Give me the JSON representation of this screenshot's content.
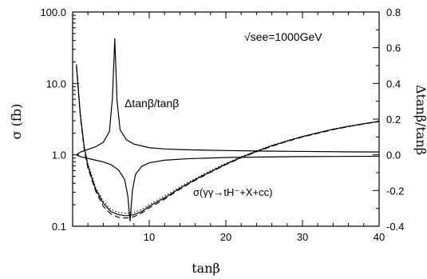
{
  "chart_data": {
    "type": "line",
    "title": "",
    "xlabel": "tanβ",
    "ylabel_left": "σ  (fb)",
    "ylabel_right": "Δtanβ/tanβ",
    "xlim": [
      0,
      40
    ],
    "ylim_left": [
      0.1,
      100.0
    ],
    "ylim_left_scale": "log",
    "ylim_right": [
      -0.4,
      0.8
    ],
    "ylim_right_scale": "linear",
    "x_ticks": [
      10,
      20,
      30,
      40
    ],
    "x_tick_labels": [
      "10",
      "20",
      "30",
      "40"
    ],
    "y_left_ticks": [
      0.1,
      1.0,
      10.0,
      100.0
    ],
    "y_left_tick_labels": [
      "0.1",
      "1.0",
      "10.0",
      "100.0"
    ],
    "y_right_ticks": [
      -0.4,
      -0.2,
      0.0,
      0.2,
      0.4,
      0.6,
      0.8
    ],
    "y_right_tick_labels": [
      "-0.4",
      "-0.2",
      "0.0",
      "0.2",
      "0.4",
      "0.6",
      "0.8"
    ],
    "grid": false,
    "annotations": {
      "energy": "√see=1000GeV",
      "delta_label": "Δtanβ/tanβ",
      "sigma_label": "σ(γγ→tH⁻+X+cc)"
    },
    "series": [
      {
        "axis": "left",
        "style": "solid",
        "x": [
          0.5,
          1,
          1.5,
          2,
          3,
          4,
          5,
          6,
          7,
          8,
          9,
          10,
          12,
          14,
          16,
          18,
          20,
          22,
          24,
          26,
          28,
          30,
          32,
          34,
          36,
          38,
          40
        ],
        "y": [
          18,
          3.7,
          1.3,
          0.7,
          0.33,
          0.21,
          0.16,
          0.145,
          0.14,
          0.145,
          0.16,
          0.19,
          0.25,
          0.34,
          0.45,
          0.58,
          0.74,
          0.92,
          1.12,
          1.34,
          1.56,
          1.8,
          2.03,
          2.28,
          2.5,
          2.72,
          2.95
        ]
      },
      {
        "axis": "left",
        "style": "dashed",
        "x": [
          0.5,
          1,
          1.5,
          2,
          3,
          4,
          5,
          6,
          7,
          8,
          9,
          10,
          12,
          14,
          16,
          18,
          20,
          22,
          24,
          26,
          28,
          30,
          32,
          34,
          36,
          38,
          40
        ],
        "y": [
          17,
          3.5,
          1.2,
          0.65,
          0.31,
          0.19,
          0.148,
          0.133,
          0.13,
          0.136,
          0.152,
          0.18,
          0.24,
          0.33,
          0.44,
          0.57,
          0.73,
          0.91,
          1.1,
          1.32,
          1.54,
          1.78,
          2.0,
          2.25,
          2.48,
          2.7,
          2.92
        ]
      },
      {
        "axis": "left",
        "style": "dotted",
        "x": [
          0.5,
          1,
          1.5,
          2,
          3,
          4,
          5,
          6,
          7,
          8,
          9,
          10,
          12,
          14,
          16,
          18,
          20,
          22,
          24,
          26,
          28,
          30,
          32,
          34,
          36,
          38,
          40
        ],
        "y": [
          18.5,
          3.9,
          1.35,
          0.74,
          0.35,
          0.225,
          0.172,
          0.156,
          0.151,
          0.156,
          0.171,
          0.2,
          0.265,
          0.355,
          0.465,
          0.6,
          0.76,
          0.94,
          1.14,
          1.36,
          1.58,
          1.82,
          2.05,
          2.3,
          2.52,
          2.74,
          2.97
        ]
      },
      {
        "axis": "right",
        "style": "solid",
        "x": [
          0.5,
          1,
          2,
          3,
          4,
          4.8,
          5.2,
          5.5,
          5.8,
          6.2,
          7,
          8,
          10,
          12,
          15,
          20,
          25,
          30,
          35,
          40
        ],
        "y": [
          0.0,
          0.015,
          0.03,
          0.045,
          0.07,
          0.13,
          0.32,
          0.65,
          0.3,
          0.14,
          0.085,
          0.06,
          0.04,
          0.033,
          0.028,
          0.024,
          0.021,
          0.019,
          0.017,
          0.016
        ]
      },
      {
        "axis": "right",
        "style": "solid",
        "x": [
          0.5,
          1,
          2,
          3,
          4,
          5,
          6,
          6.8,
          7.2,
          7.5,
          7.8,
          8.2,
          9,
          10,
          12,
          15,
          20,
          25,
          30,
          35,
          40
        ],
        "y": [
          0.0,
          -0.01,
          -0.02,
          -0.03,
          -0.04,
          -0.055,
          -0.085,
          -0.14,
          -0.23,
          -0.37,
          -0.2,
          -0.11,
          -0.065,
          -0.045,
          -0.03,
          -0.022,
          -0.015,
          -0.012,
          -0.01,
          -0.009,
          -0.008
        ]
      }
    ]
  }
}
